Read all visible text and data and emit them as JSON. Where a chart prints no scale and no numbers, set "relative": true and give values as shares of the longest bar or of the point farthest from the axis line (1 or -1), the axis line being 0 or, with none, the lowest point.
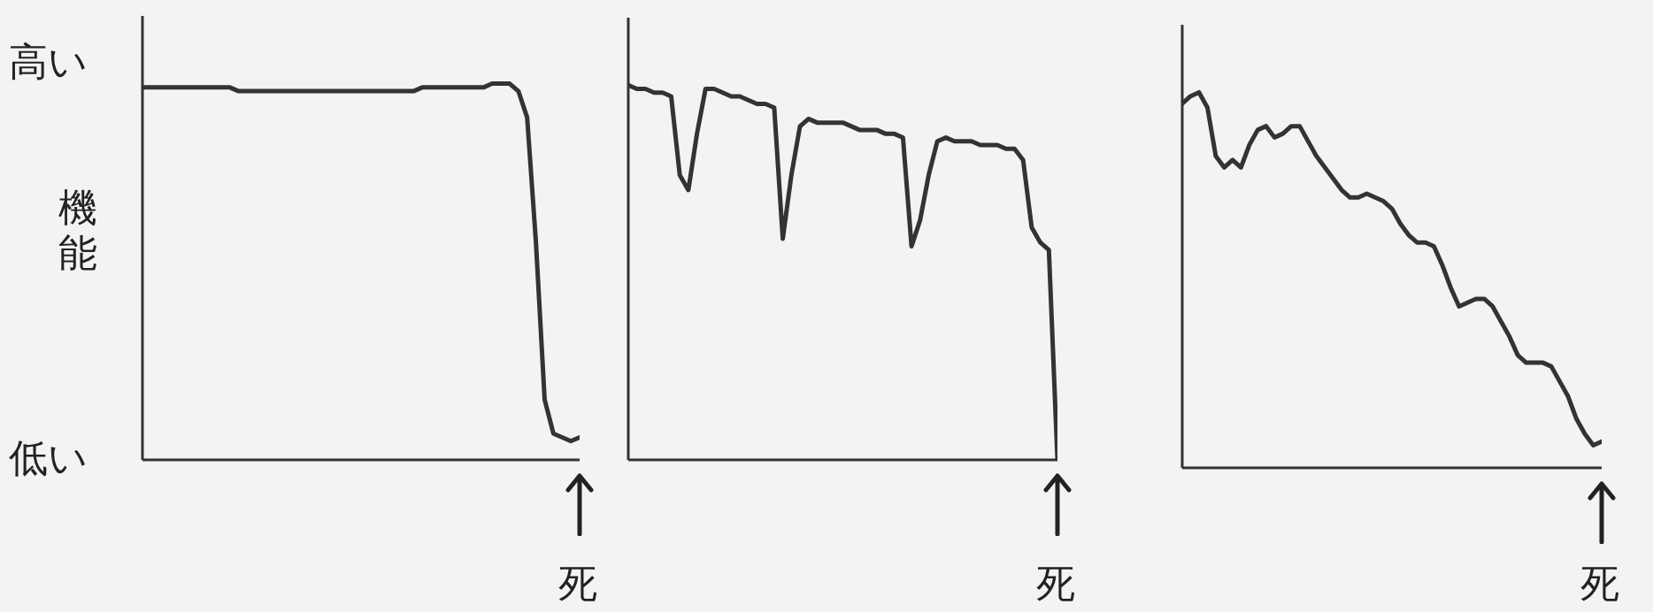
{
  "chart_data": [
    {
      "type": "line",
      "relative": true,
      "ylabel": "機能",
      "annotations": [
        "高い",
        "低い",
        "死"
      ],
      "categories": [
        null,
        null,
        null,
        null,
        null,
        null,
        null,
        null,
        null,
        null,
        null,
        null,
        null,
        null,
        null,
        null,
        null,
        null,
        null,
        null,
        null,
        null,
        null,
        null,
        null,
        null,
        null,
        null,
        null,
        null,
        null,
        null,
        null,
        null,
        null,
        null,
        null,
        null,
        null,
        null,
        null,
        null,
        null,
        null,
        null,
        null,
        null,
        null,
        null,
        null,
        null
      ],
      "color": "#333333",
      "values": [
        0.99,
        0.99,
        0.99,
        0.99,
        0.99,
        0.99,
        0.99,
        0.99,
        0.99,
        0.99,
        0.99,
        0.98,
        0.98,
        0.98,
        0.98,
        0.98,
        0.98,
        0.98,
        0.98,
        0.98,
        0.98,
        0.98,
        0.98,
        0.98,
        0.98,
        0.98,
        0.98,
        0.98,
        0.98,
        0.98,
        0.98,
        0.98,
        0.99,
        0.99,
        0.99,
        0.99,
        0.99,
        0.99,
        0.99,
        0.99,
        1,
        1,
        1,
        0.98,
        0.91,
        0.58,
        0.16,
        0.07,
        0.06,
        0.05,
        0.06
      ]
    },
    {
      "type": "line",
      "relative": true,
      "annotations": [
        "死"
      ],
      "categories": [
        null,
        null,
        null,
        null,
        null,
        null,
        null,
        null,
        null,
        null,
        null,
        null,
        null,
        null,
        null,
        null,
        null,
        null,
        null,
        null,
        null,
        null,
        null,
        null,
        null,
        null,
        null,
        null,
        null,
        null,
        null,
        null,
        null,
        null,
        null,
        null,
        null,
        null,
        null,
        null,
        null,
        null,
        null,
        null,
        null,
        null,
        null,
        null,
        null,
        null,
        null
      ],
      "color": "#333333",
      "values": [
        1,
        0.99,
        0.99,
        0.98,
        0.98,
        0.97,
        0.76,
        0.72,
        0.87,
        0.99,
        0.99,
        0.98,
        0.97,
        0.97,
        0.96,
        0.95,
        0.95,
        0.94,
        0.59,
        0.76,
        0.89,
        0.91,
        0.9,
        0.9,
        0.9,
        0.9,
        0.89,
        0.88,
        0.88,
        0.88,
        0.87,
        0.87,
        0.86,
        0.57,
        0.64,
        0.76,
        0.85,
        0.86,
        0.85,
        0.85,
        0.85,
        0.84,
        0.84,
        0.84,
        0.83,
        0.83,
        0.8,
        0.62,
        0.58,
        0.56,
        0
      ]
    },
    {
      "type": "line",
      "relative": true,
      "annotations": [
        "死"
      ],
      "categories": [
        null,
        null,
        null,
        null,
        null,
        null,
        null,
        null,
        null,
        null,
        null,
        null,
        null,
        null,
        null,
        null,
        null,
        null,
        null,
        null,
        null,
        null,
        null,
        null,
        null,
        null,
        null,
        null,
        null,
        null,
        null,
        null,
        null,
        null,
        null,
        null,
        null,
        null,
        null,
        null,
        null,
        null,
        null,
        null,
        null,
        null,
        null,
        null,
        null,
        null,
        null
      ],
      "color": "#333333",
      "values": [
        0.97,
        0.99,
        1,
        0.96,
        0.83,
        0.8,
        0.82,
        0.8,
        0.86,
        0.9,
        0.91,
        0.88,
        0.89,
        0.91,
        0.91,
        0.87,
        0.83,
        0.8,
        0.77,
        0.74,
        0.72,
        0.72,
        0.73,
        0.72,
        0.71,
        0.69,
        0.65,
        0.62,
        0.6,
        0.6,
        0.59,
        0.54,
        0.48,
        0.43,
        0.44,
        0.45,
        0.45,
        0.43,
        0.39,
        0.35,
        0.3,
        0.28,
        0.28,
        0.28,
        0.27,
        0.23,
        0.19,
        0.13,
        0.09,
        0.06,
        0.07
      ]
    }
  ]
}
